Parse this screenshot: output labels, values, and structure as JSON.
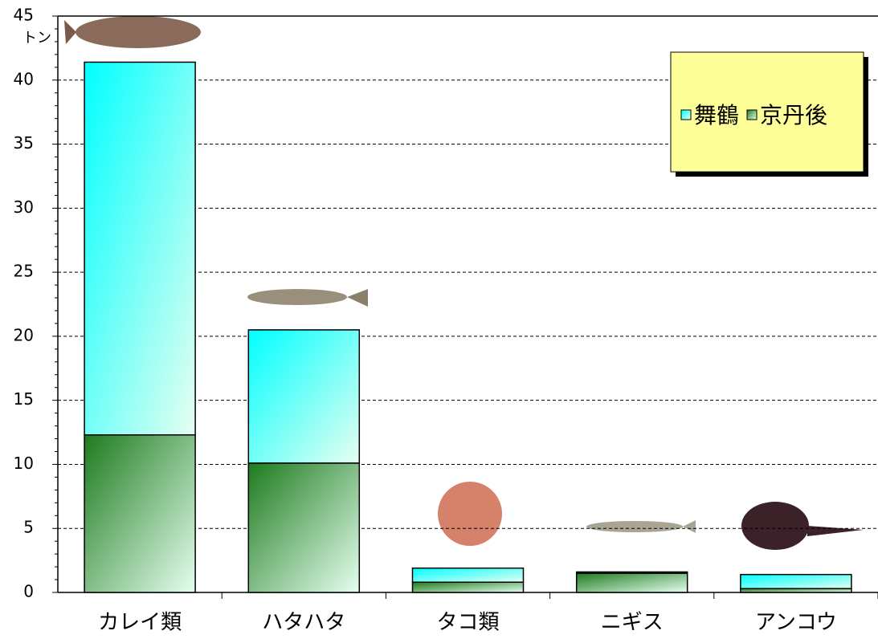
{
  "chart_data": {
    "type": "bar",
    "stacked": true,
    "y_label": "トン",
    "categories": [
      "カレイ類",
      "ハタハタ",
      "タコ類",
      "ニギス",
      "アンコウ"
    ],
    "series": [
      {
        "name": "舞鶴",
        "color": "#00ffff",
        "values": [
          29.1,
          10.4,
          1.1,
          0.1,
          1.1
        ]
      },
      {
        "name": "京丹後",
        "color": "#1e7b1e",
        "values": [
          12.3,
          10.1,
          0.8,
          1.5,
          0.3
        ]
      }
    ],
    "ylim": [
      0,
      45
    ],
    "yticks": [
      0,
      5,
      10,
      15,
      20,
      25,
      30,
      35,
      40,
      45
    ],
    "grid": true,
    "legend": "upper right"
  }
}
